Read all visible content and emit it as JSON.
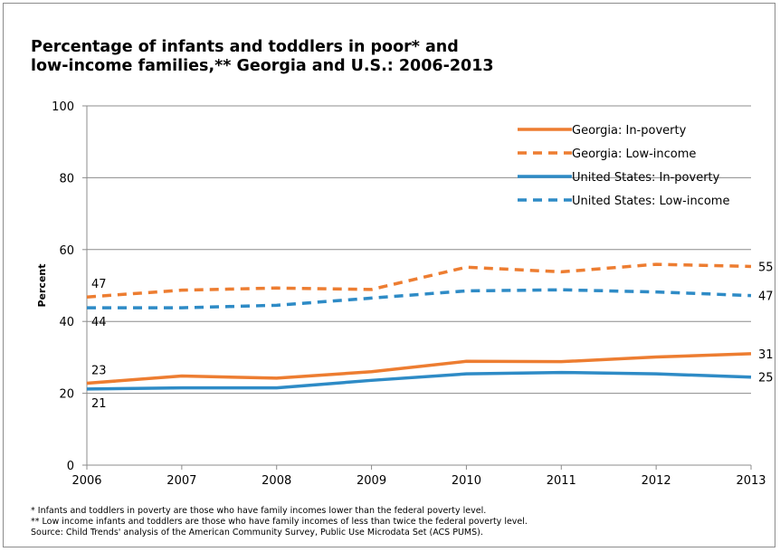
{
  "chart_data": {
    "type": "line",
    "title_lines": [
      "Percentage of infants and toddlers in poor* and",
      "low-income families,** Georgia and U.S.: 2006-2013"
    ],
    "ylabel": "Percent",
    "xlabel": "",
    "x": [
      2006,
      2007,
      2008,
      2009,
      2010,
      2011,
      2012,
      2013
    ],
    "ylim": [
      0,
      100
    ],
    "yticks": [
      0,
      20,
      40,
      60,
      80,
      100
    ],
    "grid": true,
    "legend_position": "top-right",
    "series": [
      {
        "name": "Georgia: In-poverty",
        "color": "#ED7D31",
        "dash": "solid",
        "values": [
          22.8,
          24.8,
          24.2,
          26.0,
          28.9,
          28.8,
          30.1,
          31.0
        ]
      },
      {
        "name": "Georgia: Low-income",
        "color": "#ED7D31",
        "dash": "dashed",
        "values": [
          46.8,
          48.7,
          49.3,
          48.9,
          55.1,
          53.8,
          55.9,
          55.3
        ]
      },
      {
        "name": "United States: In-poverty",
        "color": "#2E8BC6",
        "dash": "solid",
        "values": [
          21.2,
          21.5,
          21.5,
          23.6,
          25.4,
          25.8,
          25.4,
          24.5
        ]
      },
      {
        "name": "United States: Low-income",
        "color": "#2E8BC6",
        "dash": "dashed",
        "values": [
          43.8,
          43.8,
          44.5,
          46.5,
          48.5,
          48.8,
          48.2,
          47.2
        ]
      }
    ],
    "annotations": [
      {
        "text": "47",
        "series": 1,
        "point": 0
      },
      {
        "text": "44",
        "series": 3,
        "point": 0
      },
      {
        "text": "23",
        "series": 0,
        "point": 0
      },
      {
        "text": "21",
        "series": 2,
        "point": 0
      },
      {
        "text": "55",
        "series": 1,
        "point": 7
      },
      {
        "text": "47",
        "series": 3,
        "point": 7
      },
      {
        "text": "31",
        "series": 0,
        "point": 7
      },
      {
        "text": "25",
        "series": 2,
        "point": 7
      }
    ]
  },
  "footnotes": [
    "* Infants and toddlers  in poverty are those who have family incomes lower than the federal poverty level.",
    "** Low income infants and toddlers are those who have family incomes of less than twice the federal poverty level.",
    "Source: Child Trends' analysis of the American Community Survey, Public Use Microdata Set (ACS PUMS)."
  ]
}
